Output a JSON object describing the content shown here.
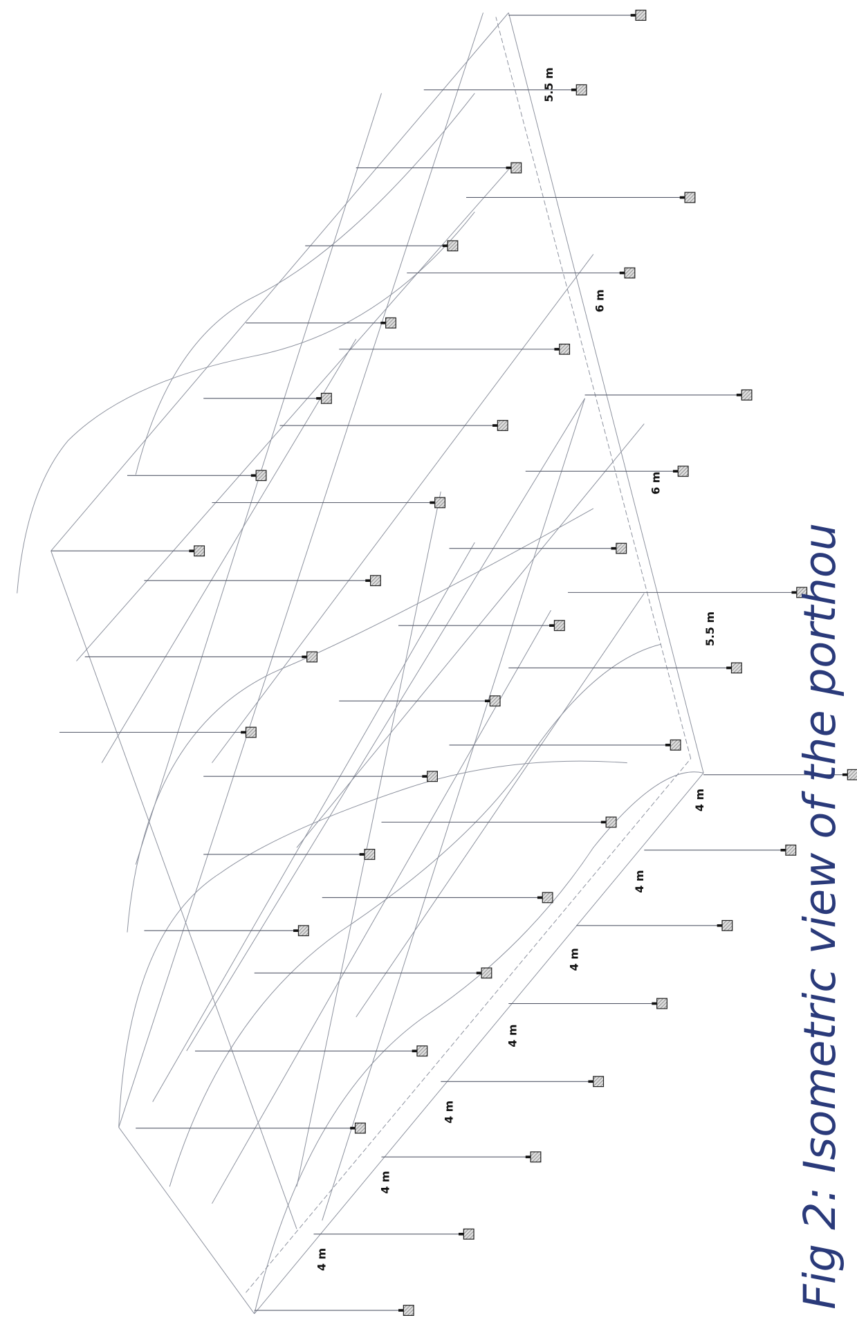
{
  "dimensions": [
    "5.5 m",
    "6 m",
    "6 m",
    "5.5 m",
    "4 m",
    "4 m",
    "4 m",
    "4 m",
    "4 m",
    "4 m",
    "4 m"
  ],
  "caption": "Fig 2: Isometric view of the porthou"
}
